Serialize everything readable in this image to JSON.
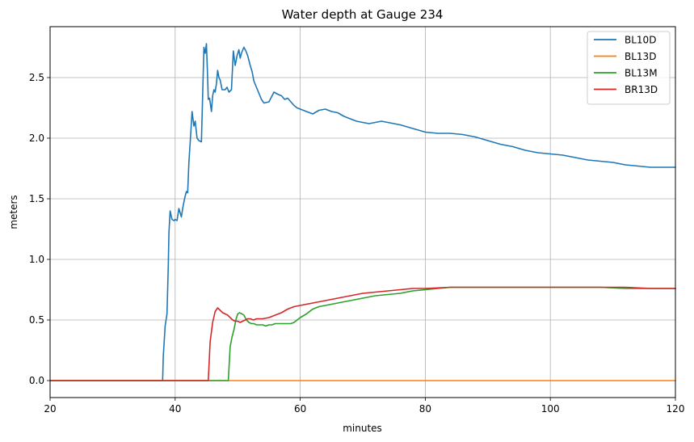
{
  "chart_data": {
    "type": "line",
    "title": "Water depth at Gauge 234",
    "xlabel": "minutes",
    "ylabel": "meters",
    "xlim": [
      20,
      120
    ],
    "ylim": [
      -0.14,
      2.92
    ],
    "xticks": [
      20,
      40,
      60,
      80,
      100,
      120
    ],
    "xtick_labels": [
      "20",
      "40",
      "60",
      "80",
      "100",
      "120"
    ],
    "yticks": [
      0.0,
      0.5,
      1.0,
      1.5,
      2.0,
      2.5
    ],
    "ytick_labels": [
      "0.0",
      "0.5",
      "1.0",
      "1.5",
      "2.0",
      "2.5"
    ],
    "grid": true,
    "legend_position": "top-right",
    "series": [
      {
        "name": "BL10D",
        "color": "#1f77b4",
        "x": [
          20,
          38.0,
          38.1,
          38.4,
          38.7,
          38.9,
          39.0,
          39.2,
          39.5,
          39.8,
          40.0,
          40.3,
          40.6,
          41.0,
          41.2,
          41.5,
          41.8,
          42.0,
          42.2,
          42.5,
          42.7,
          43.0,
          43.2,
          43.5,
          43.8,
          44.2,
          44.6,
          44.8,
          45.0,
          45.2,
          45.3,
          45.5,
          45.8,
          46.0,
          46.2,
          46.4,
          46.6,
          46.8,
          47.0,
          47.2,
          47.5,
          48.0,
          48.3,
          48.6,
          49.0,
          49.3,
          49.6,
          49.9,
          50.2,
          50.4,
          50.6,
          51.0,
          51.3,
          51.6,
          52.0,
          52.3,
          52.6,
          53.0,
          53.4,
          53.8,
          54.2,
          55.0,
          55.8,
          56.5,
          57.0,
          57.5,
          58.0,
          58.5,
          59.0,
          59.5,
          60.0,
          61.0,
          62.0,
          63.0,
          64.0,
          65.0,
          66.0,
          67.0,
          68.0,
          69.0,
          70.0,
          71.0,
          72.0,
          73.0,
          74.0,
          75.0,
          76.0,
          78.0,
          80.0,
          82.0,
          84.0,
          86.0,
          88.0,
          90.0,
          92.0,
          94.0,
          96.0,
          98.0,
          100.0,
          102.0,
          104.0,
          106.0,
          108.0,
          110.0,
          112.0,
          114.0,
          116.0,
          118.0,
          120.0
        ],
        "y": [
          0.0,
          0.0,
          0.2,
          0.45,
          0.55,
          0.95,
          1.22,
          1.4,
          1.33,
          1.32,
          1.33,
          1.32,
          1.42,
          1.35,
          1.42,
          1.5,
          1.56,
          1.55,
          1.8,
          2.05,
          2.22,
          2.1,
          2.14,
          2.0,
          1.98,
          1.97,
          2.75,
          2.7,
          2.78,
          2.5,
          2.32,
          2.33,
          2.22,
          2.35,
          2.4,
          2.38,
          2.45,
          2.56,
          2.5,
          2.48,
          2.4,
          2.4,
          2.42,
          2.38,
          2.4,
          2.72,
          2.6,
          2.68,
          2.73,
          2.66,
          2.7,
          2.75,
          2.72,
          2.68,
          2.6,
          2.55,
          2.47,
          2.42,
          2.37,
          2.32,
          2.29,
          2.3,
          2.38,
          2.36,
          2.35,
          2.32,
          2.33,
          2.3,
          2.27,
          2.25,
          2.24,
          2.22,
          2.2,
          2.23,
          2.24,
          2.22,
          2.21,
          2.18,
          2.16,
          2.14,
          2.13,
          2.12,
          2.13,
          2.14,
          2.13,
          2.12,
          2.11,
          2.08,
          2.05,
          2.04,
          2.04,
          2.03,
          2.01,
          1.98,
          1.95,
          1.93,
          1.9,
          1.88,
          1.87,
          1.86,
          1.84,
          1.82,
          1.81,
          1.8,
          1.78,
          1.77,
          1.76,
          1.76,
          1.76
        ],
        "note_on_start": "flat at 0.0 from x=20 to x=38"
      },
      {
        "name": "BL13D",
        "color": "#ff7f0e",
        "x": [
          20,
          120
        ],
        "y": [
          0.0,
          0.0
        ]
      },
      {
        "name": "BL13M",
        "color": "#2ca02c",
        "x": [
          20,
          48.5,
          48.8,
          49.1,
          49.4,
          49.7,
          50.0,
          50.3,
          50.7,
          51.0,
          51.4,
          51.8,
          52.2,
          52.6,
          53.0,
          53.5,
          54.0,
          54.5,
          55.0,
          55.5,
          56.0,
          56.5,
          57.0,
          57.5,
          58.0,
          58.5,
          59.0,
          60.0,
          61.0,
          62.0,
          63.0,
          64.0,
          66.0,
          68.0,
          70.0,
          72.0,
          74.0,
          76.0,
          78.0,
          80.0,
          82.0,
          84.0,
          86.0,
          88.0,
          90.0,
          92.0,
          94.0,
          96.0,
          98.0,
          100.0,
          104.0,
          108.0,
          112.0,
          116.0,
          120.0
        ],
        "y": [
          0.0,
          0.0,
          0.28,
          0.36,
          0.42,
          0.5,
          0.55,
          0.56,
          0.55,
          0.54,
          0.5,
          0.48,
          0.47,
          0.47,
          0.46,
          0.46,
          0.46,
          0.45,
          0.46,
          0.46,
          0.47,
          0.47,
          0.47,
          0.47,
          0.47,
          0.47,
          0.48,
          0.52,
          0.55,
          0.59,
          0.61,
          0.62,
          0.64,
          0.66,
          0.68,
          0.7,
          0.71,
          0.72,
          0.74,
          0.75,
          0.76,
          0.77,
          0.77,
          0.77,
          0.77,
          0.77,
          0.77,
          0.77,
          0.77,
          0.77,
          0.77,
          0.77,
          0.76,
          0.76,
          0.76
        ],
        "note_on_start": "flat at 0.0 from x=20 to x=48.5"
      },
      {
        "name": "BR13D",
        "color": "#d62728",
        "x": [
          20,
          45.3,
          45.6,
          46.0,
          46.4,
          46.8,
          47.2,
          47.6,
          48.0,
          48.4,
          48.8,
          49.2,
          49.6,
          50.0,
          50.4,
          50.8,
          51.2,
          51.6,
          52.0,
          52.5,
          53.0,
          54.0,
          55.0,
          56.0,
          57.0,
          58.0,
          59.0,
          60.0,
          62.0,
          64.0,
          66.0,
          68.0,
          70.0,
          72.0,
          74.0,
          76.0,
          78.0,
          80.0,
          84.0,
          88.0,
          92.0,
          96.0,
          100.0,
          104.0,
          108.0,
          112.0,
          116.0,
          120.0
        ],
        "y": [
          0.0,
          0.0,
          0.32,
          0.48,
          0.57,
          0.6,
          0.58,
          0.56,
          0.55,
          0.54,
          0.52,
          0.5,
          0.49,
          0.49,
          0.48,
          0.49,
          0.5,
          0.51,
          0.51,
          0.5,
          0.51,
          0.51,
          0.52,
          0.54,
          0.56,
          0.59,
          0.61,
          0.62,
          0.64,
          0.66,
          0.68,
          0.7,
          0.72,
          0.73,
          0.74,
          0.75,
          0.76,
          0.76,
          0.77,
          0.77,
          0.77,
          0.77,
          0.77,
          0.77,
          0.77,
          0.77,
          0.76,
          0.76
        ],
        "note_on_start": "flat at 0.0 from x=20 to x=45.3"
      }
    ]
  }
}
